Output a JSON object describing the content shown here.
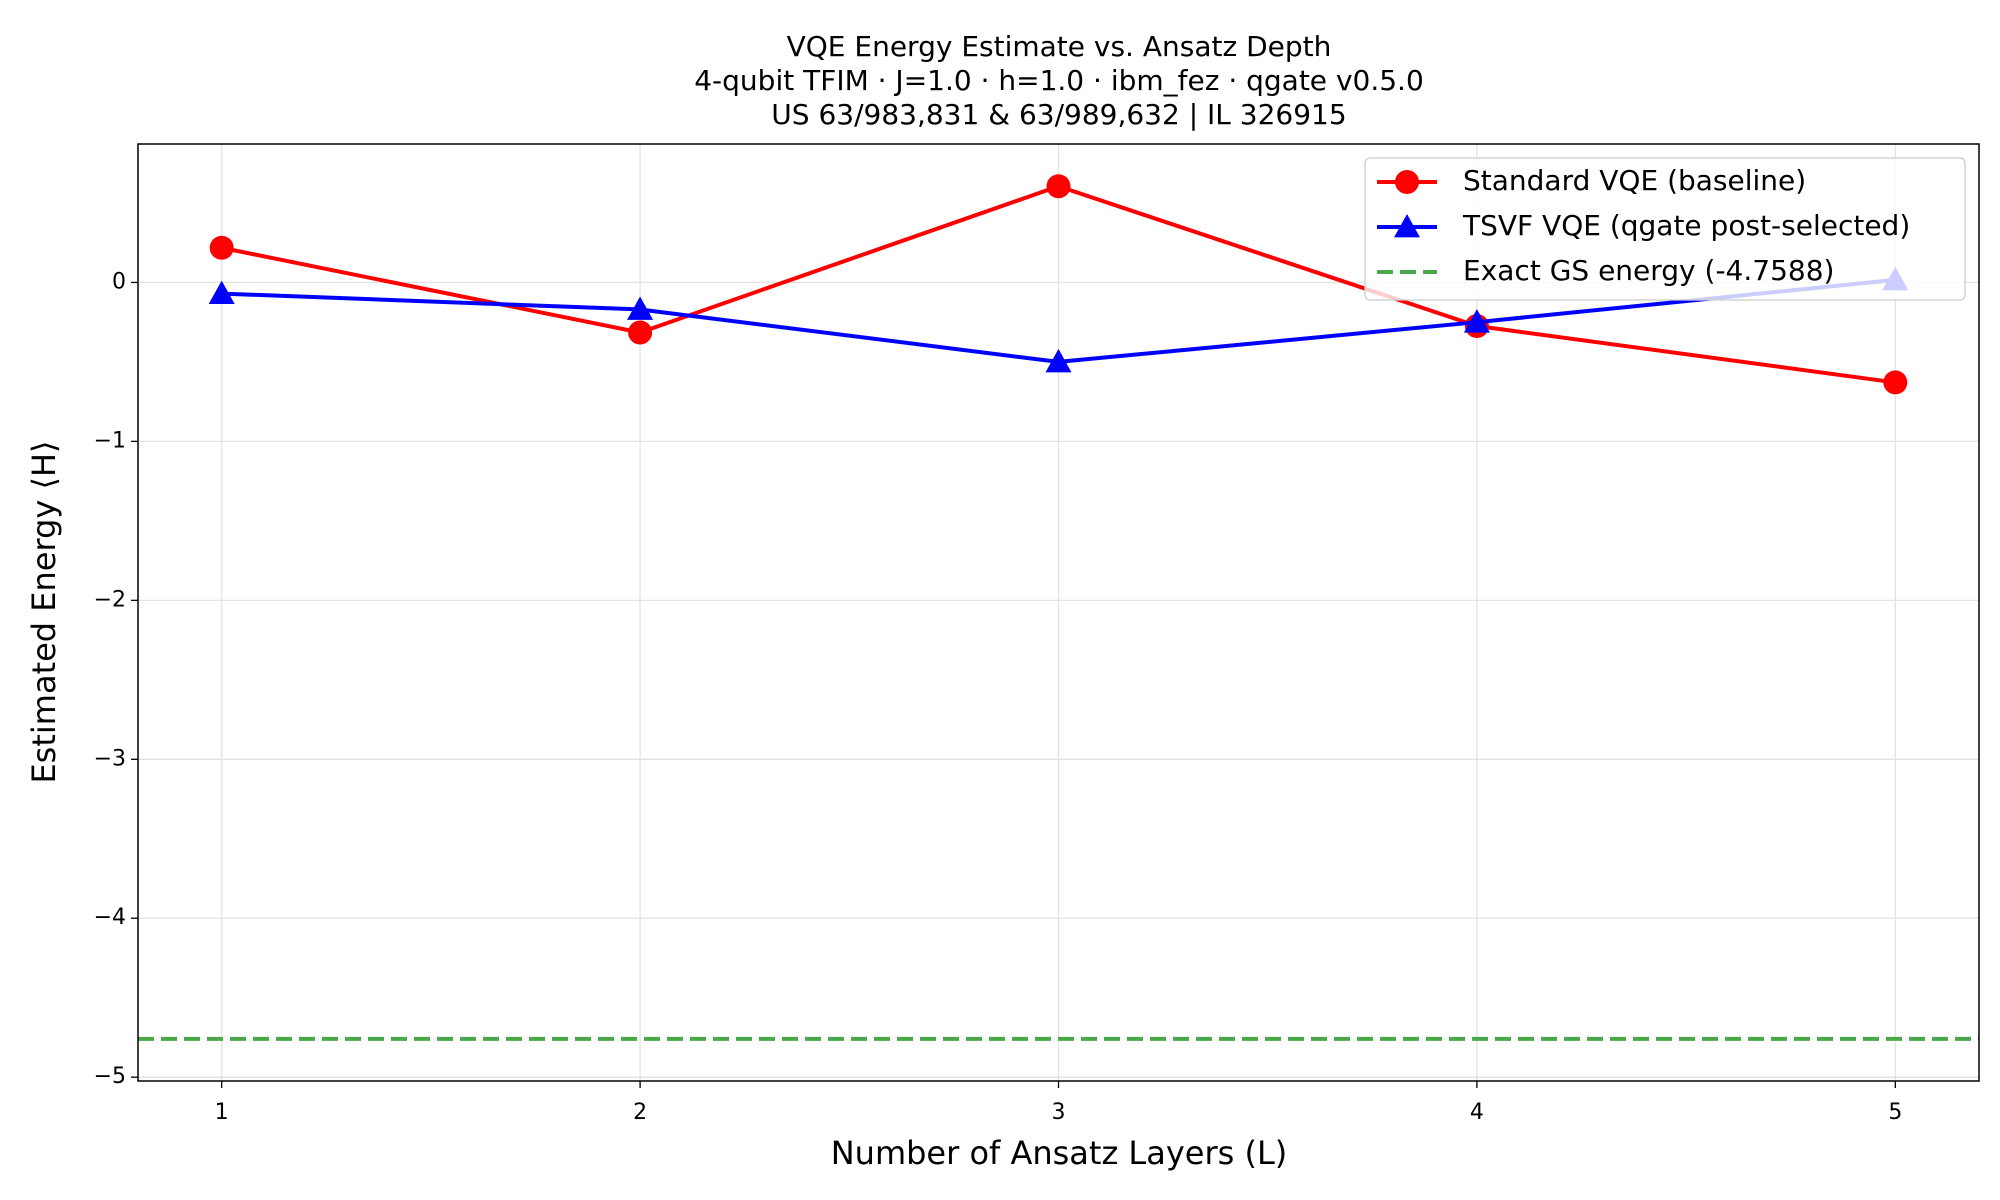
{
  "chart_data": {
    "type": "line",
    "title": "VQE Energy Estimate vs. Ansatz Depth",
    "subtitle": [
      "4-qubit TFIM · J=1.0 · h=1.0 · ibm_fez · qgate v0.5.0",
      "US 63/983,831 & 63/989,632 | IL 326915"
    ],
    "x_label": "Number of Ansatz Layers (L)",
    "y_label": "Estimated Energy ⟨H⟩",
    "x": [
      1,
      2,
      3,
      4,
      5
    ],
    "series": [
      {
        "name": "Standard VQE (baseline)",
        "color": "#ff0000",
        "marker": "circle",
        "values": [
          0.218,
          -0.315,
          0.605,
          -0.274,
          -0.629
        ]
      },
      {
        "name": "TSVF VQE (qgate post-selected)",
        "color": "#0000ff",
        "marker": "triangle",
        "values": [
          -0.07,
          -0.17,
          -0.5,
          -0.25,
          0.016
        ]
      }
    ],
    "hline": {
      "name": "Exact GS energy (-4.7588)",
      "color": "#4aa84a",
      "value": -4.7588
    },
    "xlim": [
      0.8,
      5.2
    ],
    "ylim": [
      -5.024,
      0.871
    ],
    "xticks": [
      1,
      2,
      3,
      4,
      5
    ],
    "yticks": [
      {
        "value": -5,
        "label": "−5"
      },
      {
        "value": -4,
        "label": "−4"
      },
      {
        "value": -3,
        "label": "−3"
      },
      {
        "value": -2,
        "label": "−2"
      },
      {
        "value": -1,
        "label": "−1"
      },
      0
    ],
    "grid": true,
    "legend": "upper right"
  }
}
